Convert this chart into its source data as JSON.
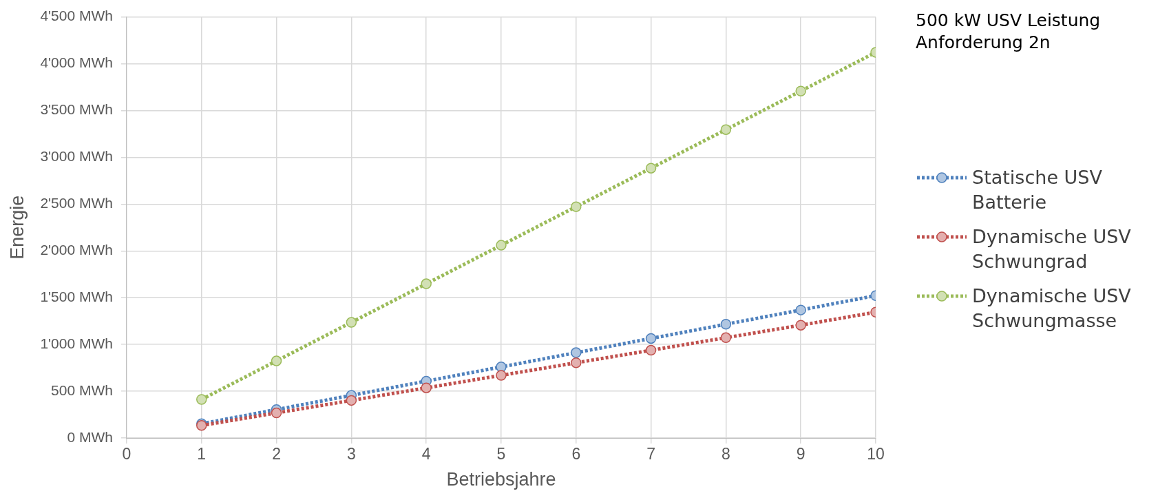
{
  "chart_data": {
    "type": "line",
    "title": "500 kW USV Leistung Anforderung 2n",
    "xlabel": "Betriebsjahre",
    "ylabel": "Energie",
    "x": [
      1,
      2,
      3,
      4,
      5,
      6,
      7,
      8,
      9,
      10
    ],
    "series": [
      {
        "name": "Statische USV Batterie",
        "color": "#4f81bd",
        "values": [
          152,
          304,
          456,
          608,
          760,
          912,
          1064,
          1216,
          1368,
          1522
        ]
      },
      {
        "name": "Dynamische USV Schwungrad",
        "color": "#c0504d",
        "values": [
          134,
          268,
          402,
          536,
          670,
          804,
          938,
          1072,
          1206,
          1345
        ]
      },
      {
        "name": "Dynamische USV Schwungmasse",
        "color": "#9bbb59",
        "values": [
          412,
          824,
          1236,
          1648,
          2060,
          2472,
          2884,
          3296,
          3708,
          4122
        ]
      }
    ],
    "xlim": [
      0,
      10
    ],
    "xticks": [
      0,
      1,
      2,
      3,
      4,
      5,
      6,
      7,
      8,
      9,
      10
    ],
    "ylim": [
      0,
      4500
    ],
    "yticks": [
      {
        "value": 0,
        "label": "0 MWh"
      },
      {
        "value": 500,
        "label": "500 MWh"
      },
      {
        "value": 1000,
        "label": "1'000 MWh"
      },
      {
        "value": 1500,
        "label": "1'500 MWh"
      },
      {
        "value": 2000,
        "label": "2'000 MWh"
      },
      {
        "value": 2500,
        "label": "2'500 MWh"
      },
      {
        "value": 3000,
        "label": "3'000 MWh"
      },
      {
        "value": 3500,
        "label": "3'500 MWh"
      },
      {
        "value": 4000,
        "label": "4'000 MWh"
      },
      {
        "value": 4500,
        "label": "4'500 MWh"
      }
    ],
    "grid": true,
    "legend": "right",
    "marker": "circle",
    "line_style": "dotted"
  }
}
